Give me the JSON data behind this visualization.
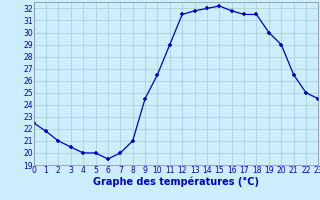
{
  "hours": [
    0,
    1,
    2,
    3,
    4,
    5,
    6,
    7,
    8,
    9,
    10,
    11,
    12,
    13,
    14,
    15,
    16,
    17,
    18,
    19,
    20,
    21,
    22,
    23
  ],
  "temps": [
    22.5,
    21.8,
    21.0,
    20.5,
    20.0,
    20.0,
    19.5,
    20.0,
    21.0,
    24.5,
    26.5,
    29.0,
    31.5,
    31.8,
    32.0,
    32.2,
    31.8,
    31.5,
    31.5,
    30.0,
    29.0,
    26.5,
    25.0,
    24.5
  ],
  "line_color": "#0000cc",
  "bg_color": "#cceeff",
  "grid_color": "#aacccc",
  "axis_bg": "#cceeff",
  "bottom_bar_color": "#ffffff",
  "xlabel": "Graphe des températures (°C)",
  "xlim": [
    0,
    23
  ],
  "ylim": [
    19,
    32.5
  ],
  "yticks": [
    19,
    20,
    21,
    22,
    23,
    24,
    25,
    26,
    27,
    28,
    29,
    30,
    31,
    32
  ],
  "xticks": [
    0,
    1,
    2,
    3,
    4,
    5,
    6,
    7,
    8,
    9,
    10,
    11,
    12,
    13,
    14,
    15,
    16,
    17,
    18,
    19,
    20,
    21,
    22,
    23
  ],
  "tick_fontsize": 5.5,
  "xlabel_fontsize": 7,
  "marker": "+",
  "markersize": 3.5,
  "markeredgewidth": 1.2,
  "linewidth": 0.9
}
